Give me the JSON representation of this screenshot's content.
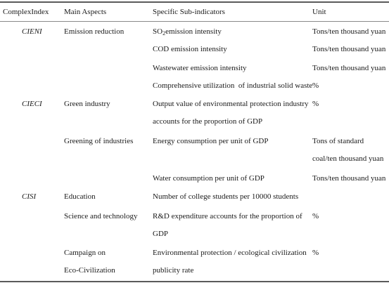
{
  "headers": {
    "index": "ComplexIndex",
    "aspects": "Main Aspects",
    "subindicators": "Specific Sub-indicators",
    "unit": "Unit"
  },
  "rows": {
    "r1": {
      "index": "CIENI",
      "aspect": "Emission reduction",
      "indicator_pre": "SO",
      "indicator_sub": "2",
      "indicator_post": "emission intensity",
      "unit": "Tons/ten thousand yuan"
    },
    "r2": {
      "indicator": "COD emission intensity",
      "unit": "Tons/ten thousand yuan"
    },
    "r3": {
      "indicator": "Wastewater emission intensity",
      "unit": "Tons/ten thousand yuan"
    },
    "r4": {
      "indicator": "Comprehensive utilization  of industrial solid waste",
      "unit": "%"
    },
    "r5": {
      "index": "CIECI",
      "aspect": "Green industry",
      "indicator_l1": "Output value of environmental protection industry",
      "indicator_l2": "accounts for the proportion of GDP",
      "unit": "%"
    },
    "r6": {
      "aspect": "Greening of industries",
      "indicator": "Energy consumption per unit of GDP",
      "unit_l1": "Tons of standard",
      "unit_l2": "coal/ten thousand yuan"
    },
    "r7": {
      "indicator": "Water consumption per unit of GDP",
      "unit": "Tons/ten thousand yuan"
    },
    "r8": {
      "index": "CISI",
      "aspect": "Education",
      "indicator": "Number of college students per 10000 students"
    },
    "r9": {
      "aspect": "Science and technology",
      "indicator_l1": "R&D expenditure accounts for the proportion of",
      "indicator_l2": "GDP",
      "unit": "%"
    },
    "r10": {
      "aspect_l1": "Campaign on",
      "aspect_l2": "Eco-Civilization",
      "indicator_l1": "Environmental protection / ecological civilization",
      "indicator_l2": "publicity rate",
      "unit": "%"
    }
  }
}
